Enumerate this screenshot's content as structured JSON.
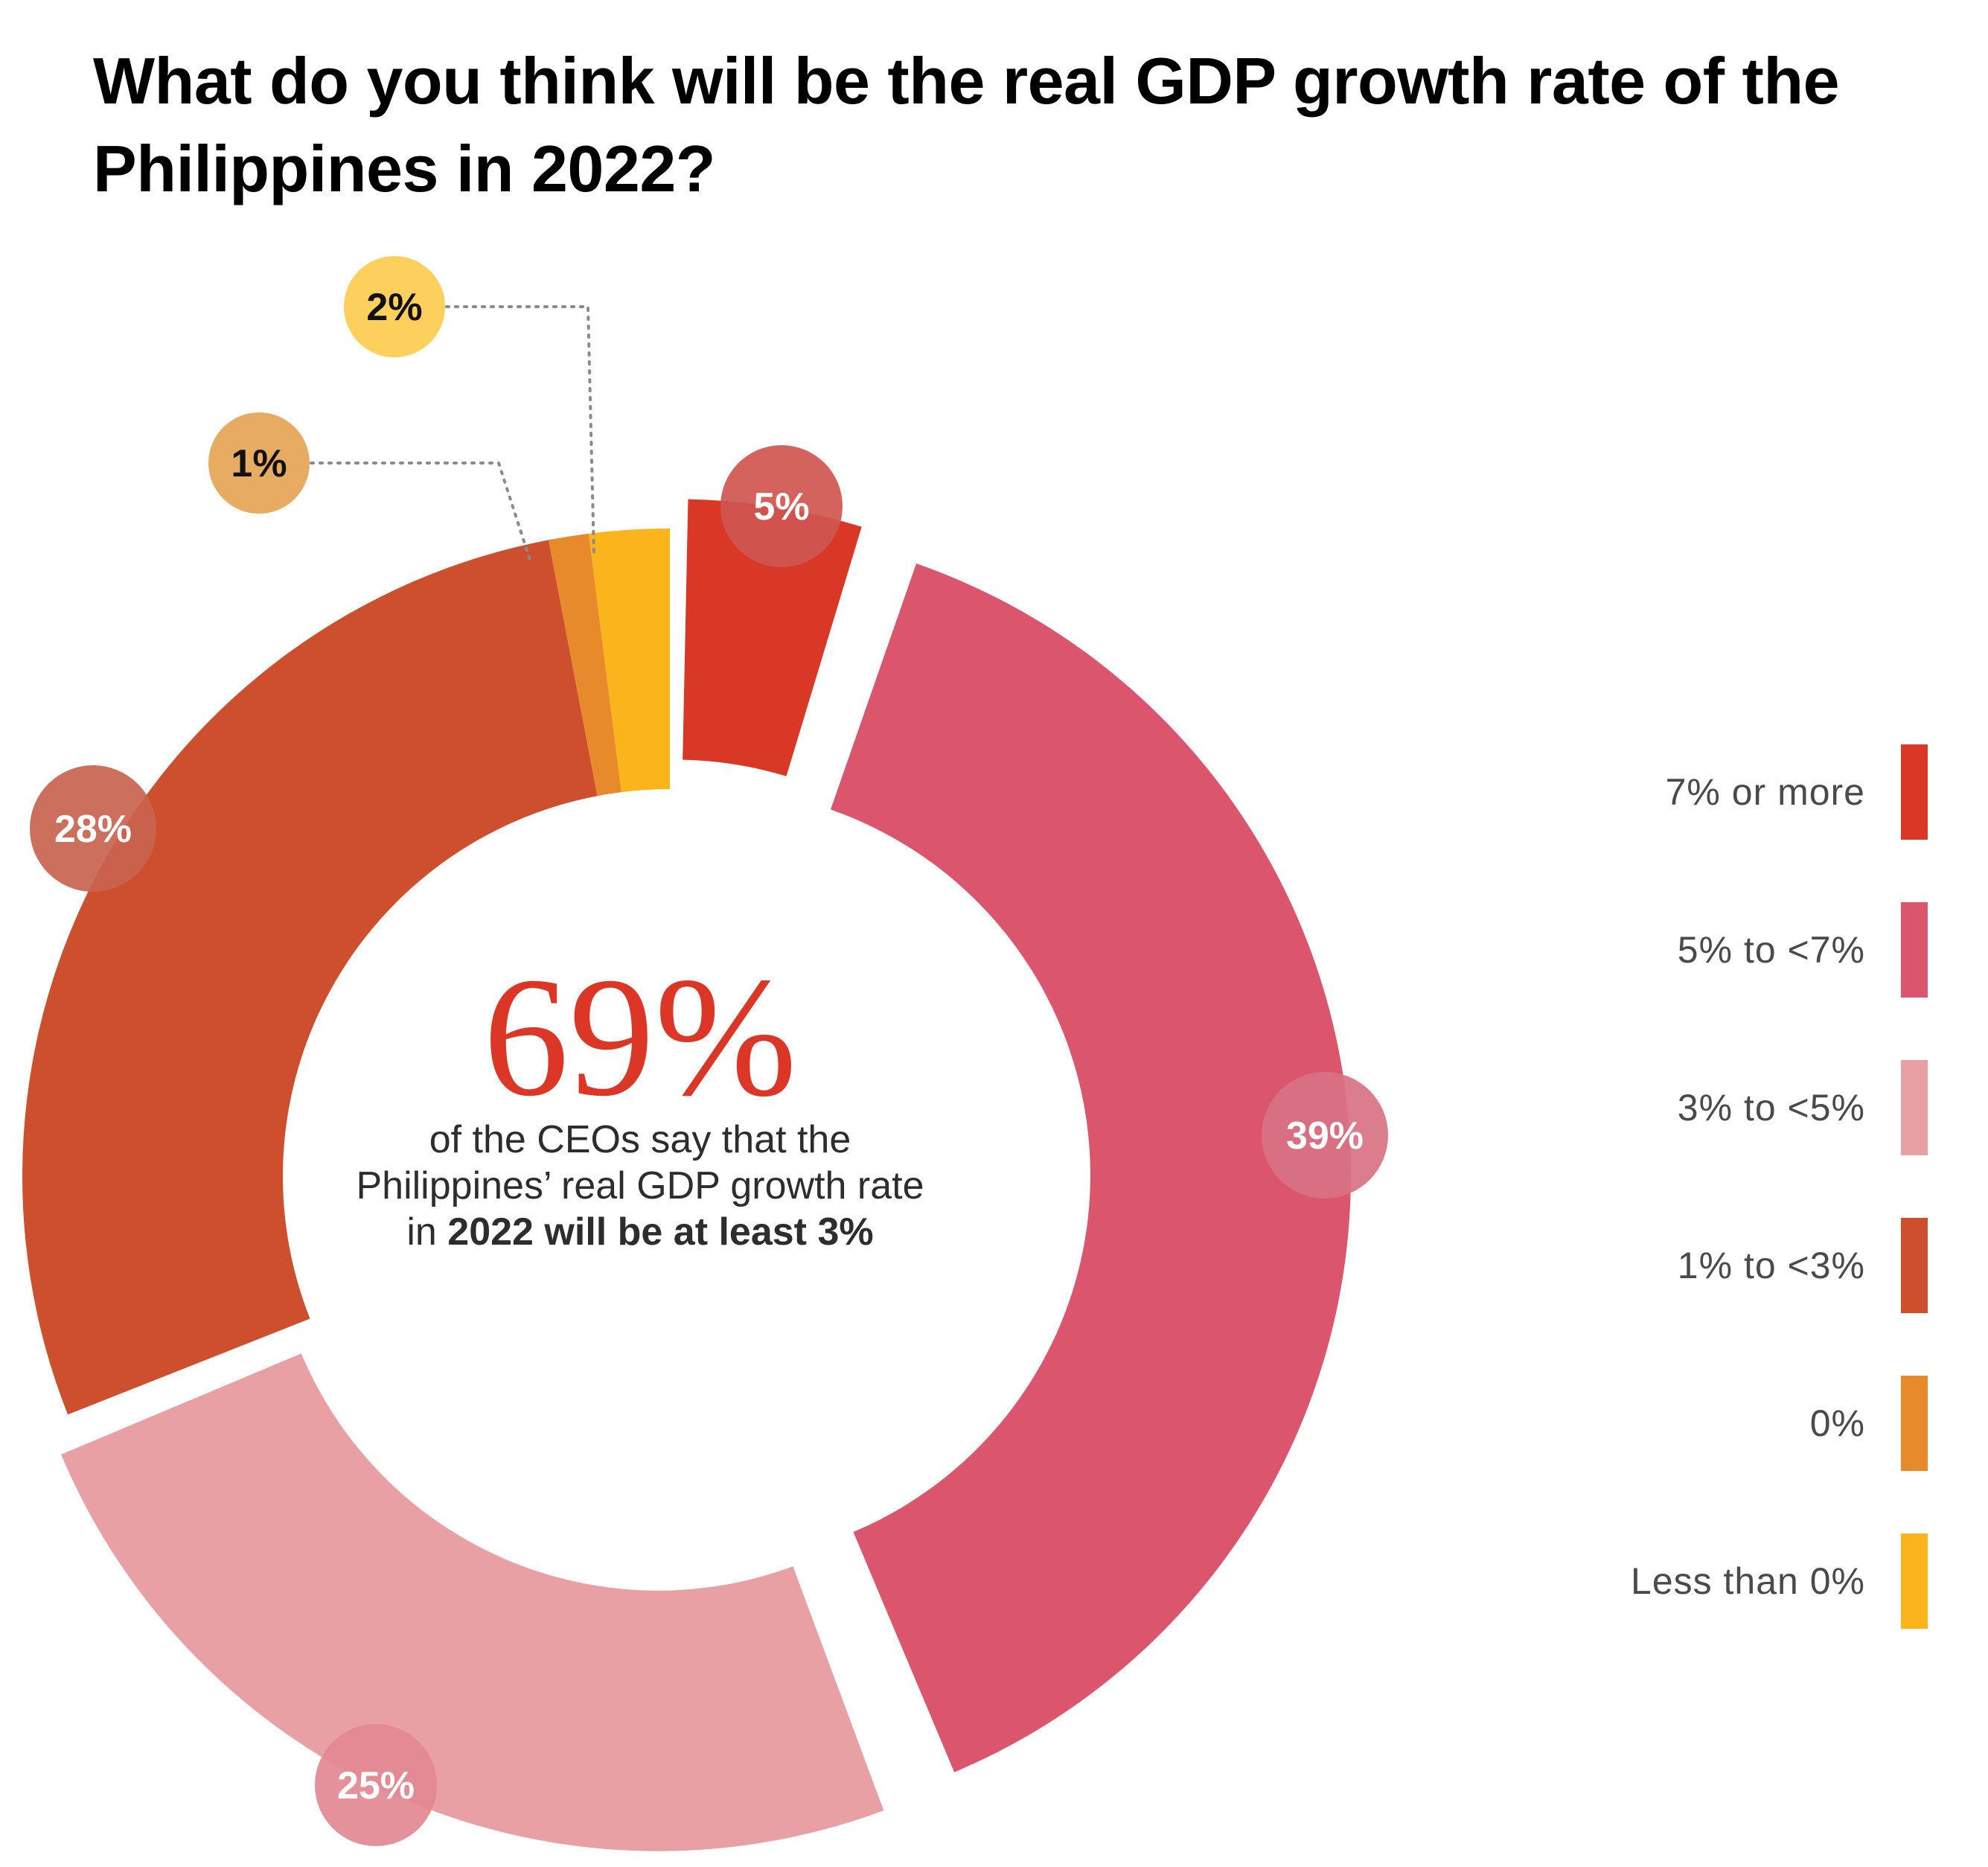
{
  "title": "What do you think will be the real GDP growth rate of the Philippines in 2022?",
  "center": {
    "big_value": "69%",
    "text_normal": "of the CEOs say that the Philippines’ real GDP growth rate in ",
    "text_bold": "2022 will be at least 3%"
  },
  "chart_data": {
    "type": "pie",
    "subtype": "donut",
    "title": "What do you think will be the real GDP growth rate of the Philippines in 2022?",
    "categories": [
      "7% or more",
      "5% to <7%",
      "3% to <5%",
      "1% to <3%",
      "0%",
      "Less than 0%"
    ],
    "values": [
      5,
      39,
      25,
      28,
      1,
      2
    ],
    "data_labels": [
      "5%",
      "39%",
      "25%",
      "28%",
      "1%",
      "2%"
    ],
    "colors": [
      "#da3826",
      "#db556d",
      "#e8a0a4",
      "#cd4f2e",
      "#e68a2b",
      "#fbb41c"
    ],
    "label_colors": [
      "#d05650",
      "#d97284",
      "#e28892",
      "#c9634f",
      "#e8ab62",
      "#fdd05d"
    ],
    "label_text_colors": [
      "#ffffff",
      "#ffffff",
      "#ffffff",
      "#ffffff",
      "#111111",
      "#111111"
    ],
    "start": "12 o'clock",
    "direction": "clockwise",
    "legend_position": "right",
    "center_annotation": "69% of the CEOs say that the Philippines’ real GDP growth rate in 2022 will be at least 3%"
  },
  "legend": [
    {
      "label": "7% or more",
      "color": "#da3826"
    },
    {
      "label": "5% to <7%",
      "color": "#db556d"
    },
    {
      "label": "3% to <5%",
      "color": "#e8a0a4"
    },
    {
      "label": "1% to <3%",
      "color": "#cd4f2e"
    },
    {
      "label": "0%",
      "color": "#e68a2b"
    },
    {
      "label": "Less than 0%",
      "color": "#fbb41c"
    }
  ]
}
